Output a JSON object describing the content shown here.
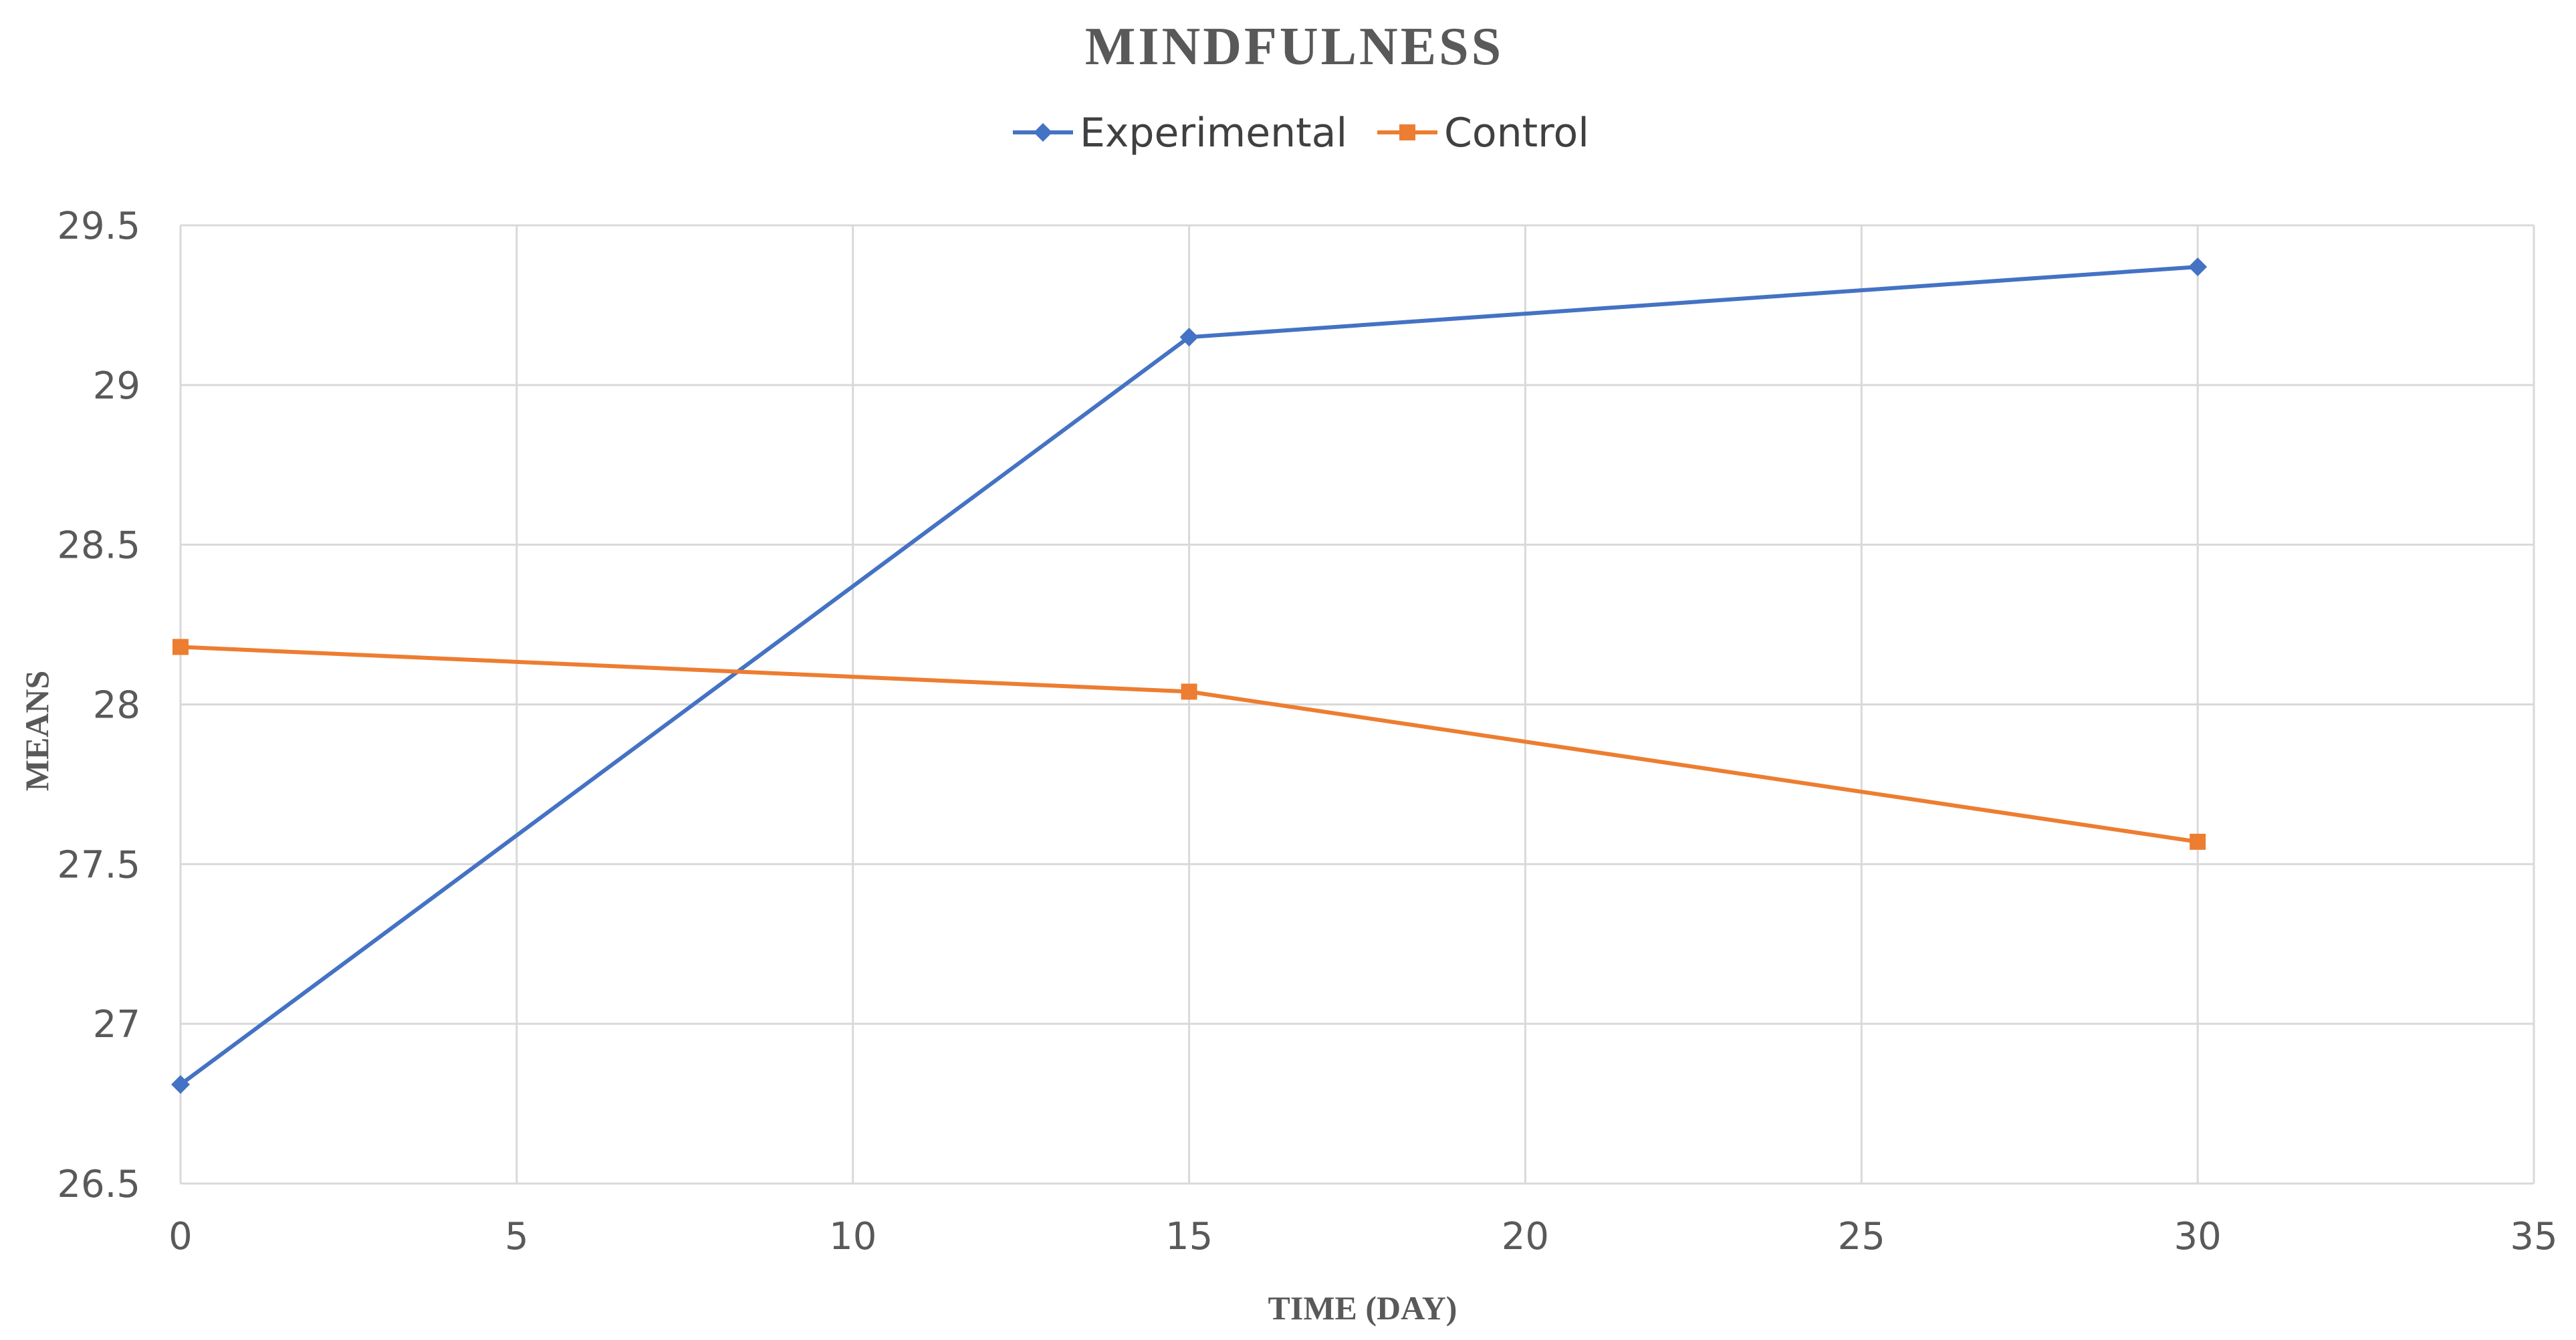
{
  "chart_data": {
    "type": "line",
    "title": "MINDFULNESS",
    "xlabel": "TIME (DAY)",
    "ylabel": "MEANS",
    "xlim": [
      0,
      35
    ],
    "ylim": [
      26.5,
      29.5
    ],
    "x_ticks": [
      0,
      5,
      10,
      15,
      20,
      25,
      30,
      35
    ],
    "y_ticks": [
      26.5,
      27,
      27.5,
      28,
      28.5,
      29,
      29.5
    ],
    "grid": true,
    "legend_position": "top",
    "series": [
      {
        "name": "Experimental",
        "color": "#4472C4",
        "marker": "diamond",
        "x": [
          0,
          15,
          30
        ],
        "y": [
          26.81,
          29.15,
          29.37
        ]
      },
      {
        "name": "Control",
        "color": "#ED7D31",
        "marker": "square",
        "x": [
          0,
          15,
          30
        ],
        "y": [
          28.18,
          28.04,
          27.57
        ]
      }
    ]
  }
}
